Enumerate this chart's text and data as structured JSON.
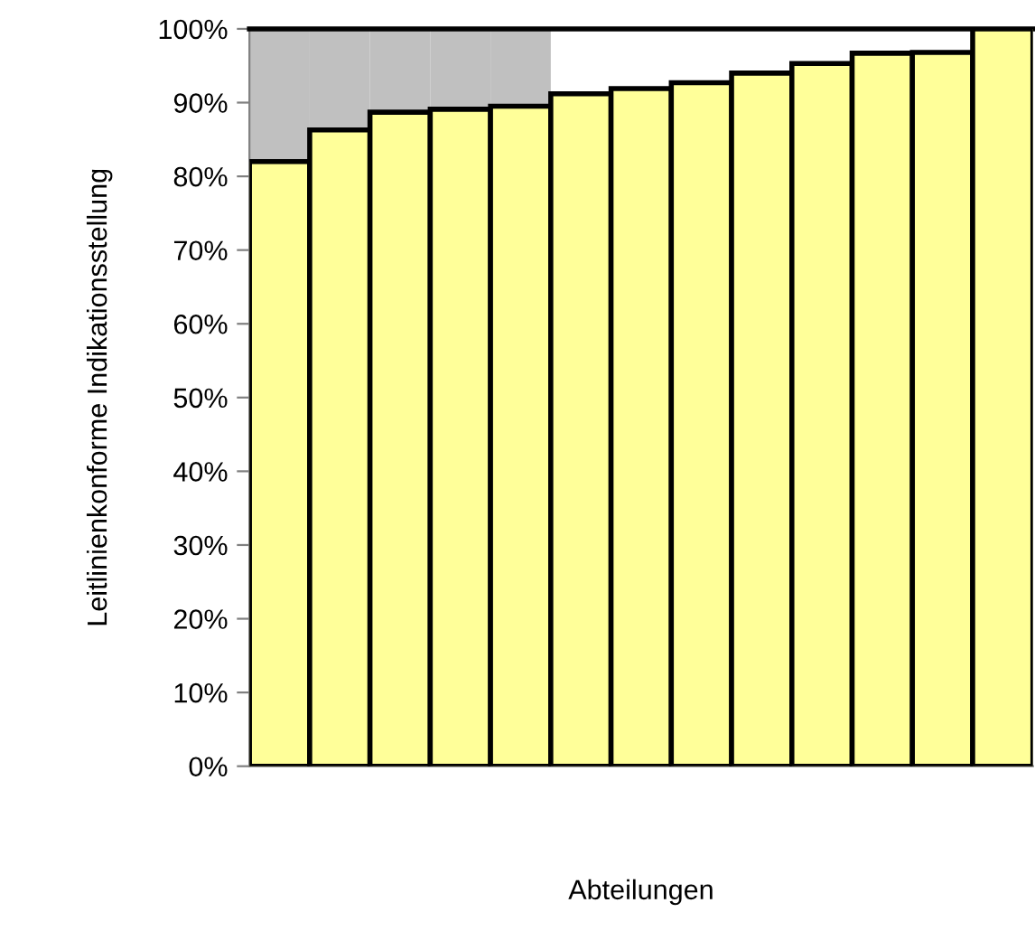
{
  "chart_data": {
    "type": "bar",
    "stacked": true,
    "xlabel": "Abteilungen",
    "ylabel": "Leitlinienkonforme Indikationsstellung",
    "categories": [
      null,
      null,
      null,
      null,
      null,
      null,
      null,
      null,
      null,
      null,
      null,
      null,
      null
    ],
    "series": [
      {
        "color": "#ffff99",
        "values": [
          82.0,
          86.3,
          88.7,
          89.1,
          89.5,
          91.2,
          91.9,
          92.7,
          94.0,
          95.3,
          96.7,
          96.8,
          100
        ]
      },
      {
        "color": "#c0c0c0",
        "values": [
          18.0,
          13.7,
          11.3,
          10.9,
          10.5,
          null,
          null,
          null,
          null,
          null,
          null,
          null,
          null
        ]
      }
    ],
    "ylim": [
      0,
      100
    ],
    "yticks": [
      {
        "value": 0,
        "label": "0%"
      },
      {
        "value": 10,
        "label": "10%"
      },
      {
        "value": 20,
        "label": "20%"
      },
      {
        "value": 30,
        "label": "30%"
      },
      {
        "value": 40,
        "label": "40%"
      },
      {
        "value": 50,
        "label": "50%"
      },
      {
        "value": 60,
        "label": "60%"
      },
      {
        "value": 70,
        "label": "70%"
      },
      {
        "value": 80,
        "label": "80%"
      },
      {
        "value": 90,
        "label": "90%"
      },
      {
        "value": 100,
        "label": "100%"
      }
    ],
    "tick_labels": "y",
    "grid": false,
    "legend": false
  }
}
